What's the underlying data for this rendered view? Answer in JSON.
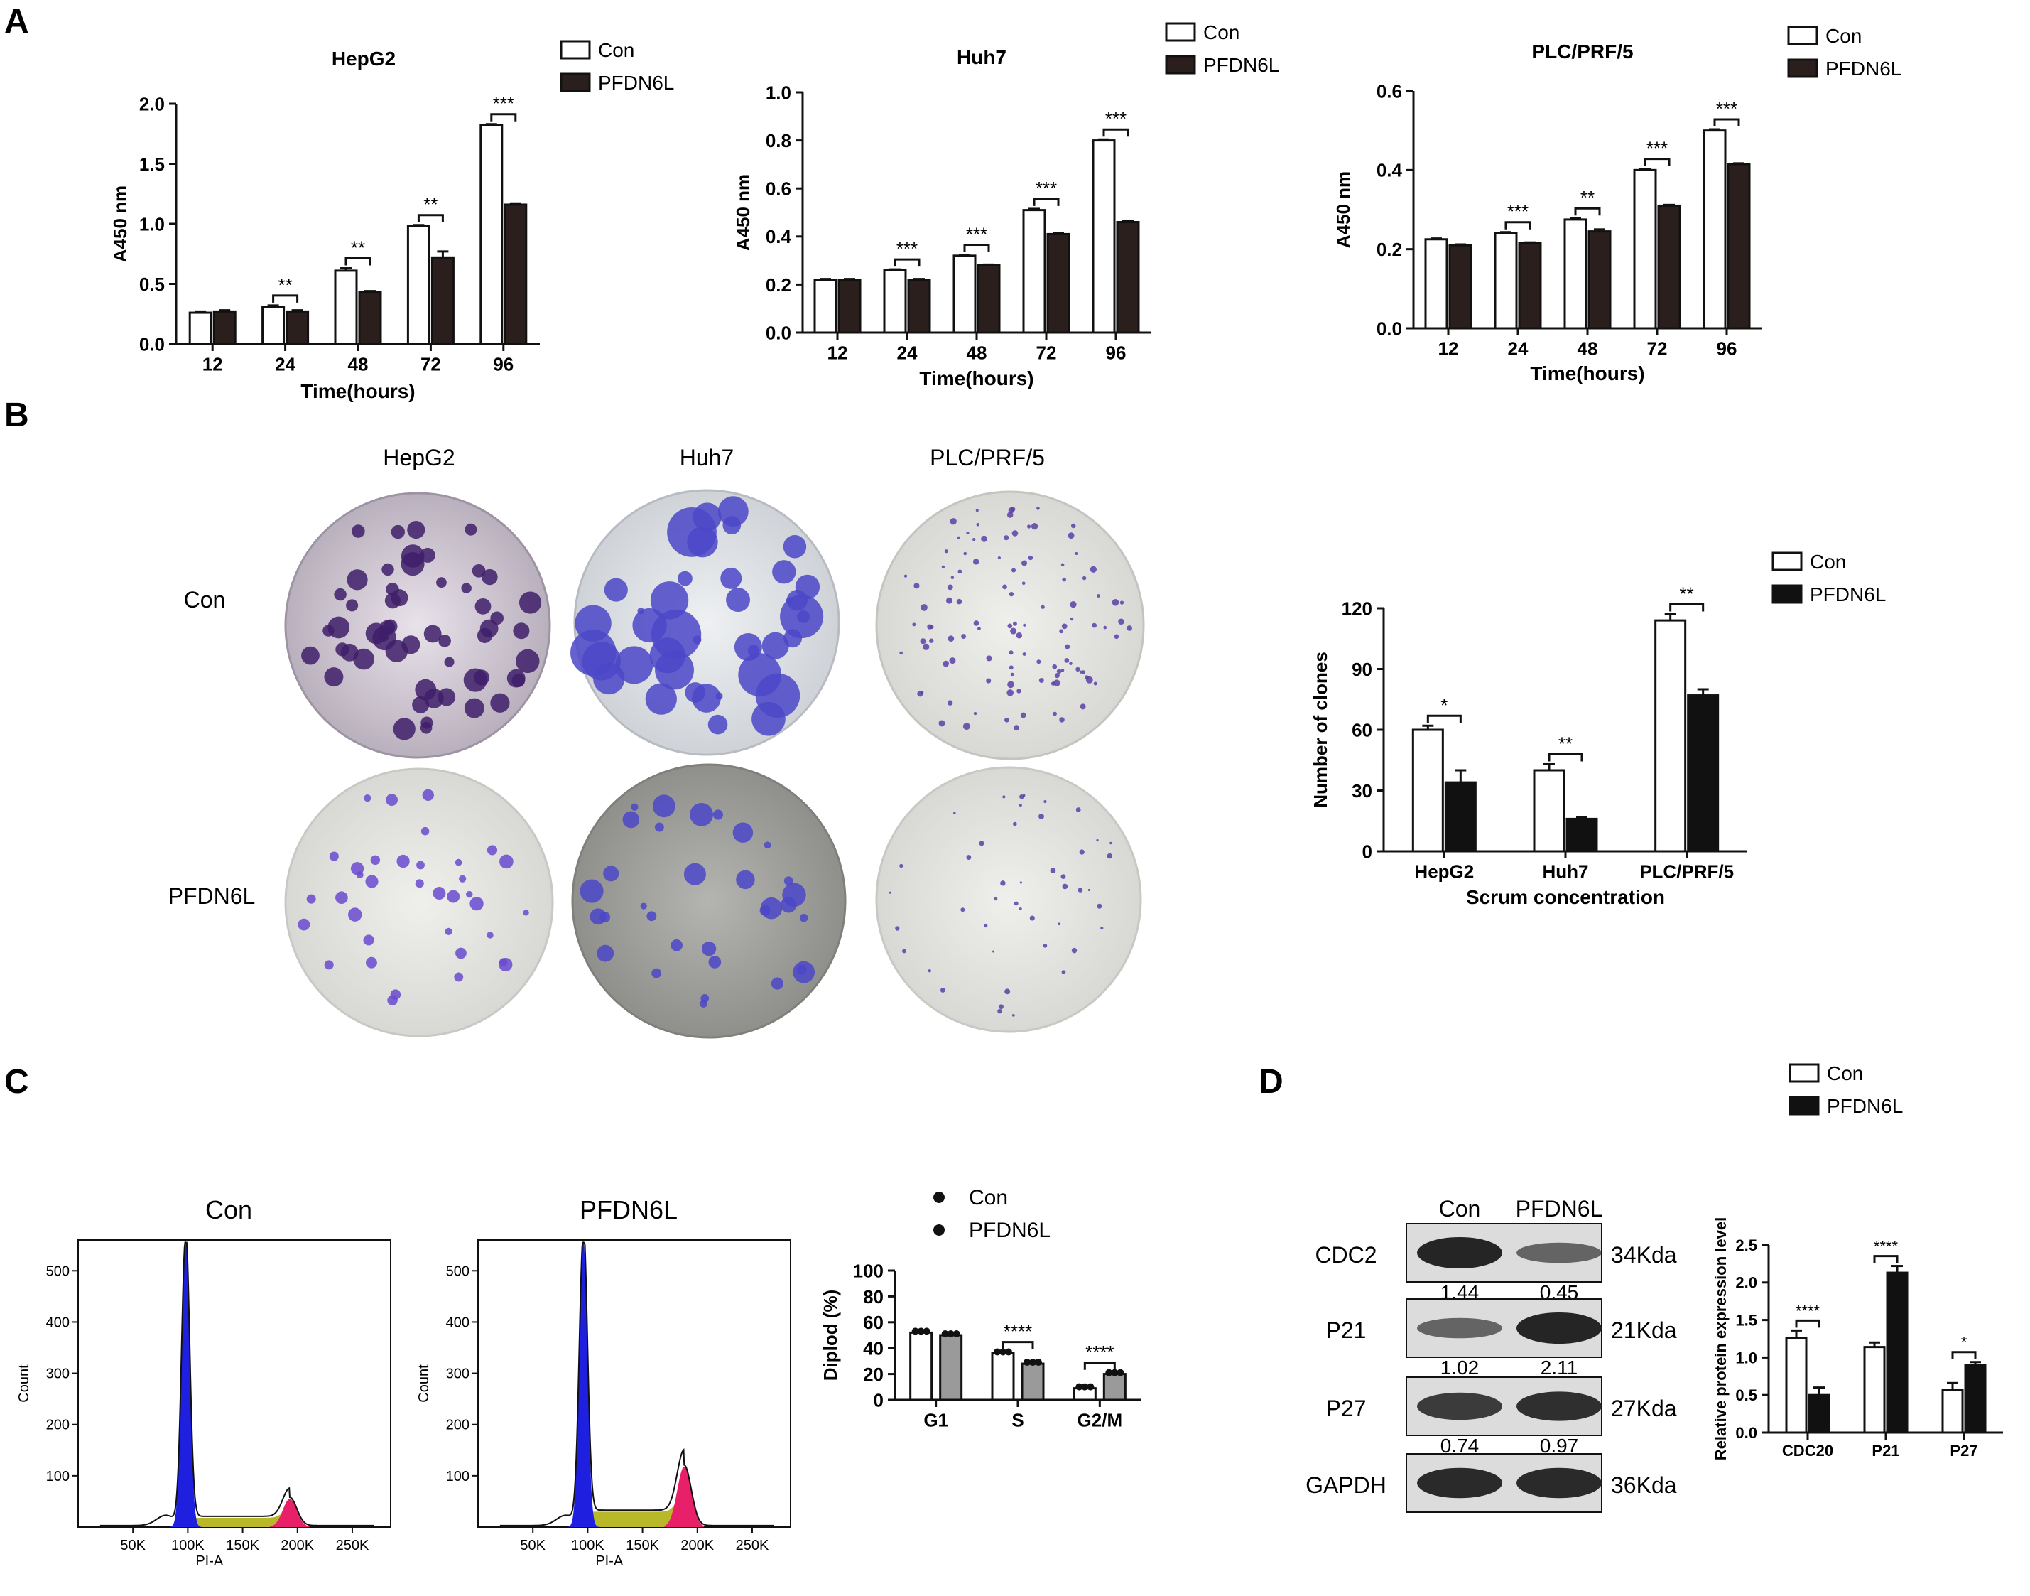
{
  "panels": {
    "A": "A",
    "B": "B",
    "C": "C",
    "D": "D"
  },
  "colors": {
    "con_fill": "#ffffff",
    "pfdn_dark": "#2a1f1d",
    "pfdn_black": "#111111",
    "pfdn_grey": "#9a9a9a",
    "g1_blue": "#1f1fe0",
    "s_olive": "#b8b828",
    "g2_pink": "#e8206a",
    "stain": "#5b3fa8"
  },
  "chart_data": [
    {
      "id": "A1",
      "type": "bar",
      "title": "HepG2",
      "categories": [
        "12",
        "24",
        "48",
        "72",
        "96"
      ],
      "series": [
        {
          "name": "Con",
          "values": [
            0.26,
            0.31,
            0.61,
            0.98,
            1.82
          ],
          "errors": [
            0.01,
            0.01,
            0.02,
            0.01,
            0.01
          ]
        },
        {
          "name": "PFDN6L",
          "values": [
            0.27,
            0.27,
            0.43,
            0.72,
            1.16
          ],
          "errors": [
            0.01,
            0.01,
            0.01,
            0.05,
            0.01
          ]
        }
      ],
      "significance": [
        "",
        "**",
        "**",
        "**",
        "***"
      ],
      "xlabel": "Time(hours)",
      "ylabel": "A450  nm",
      "ylim": [
        0,
        2.0
      ],
      "yticks": [
        "0.0",
        "0.5",
        "1.0",
        "1.5",
        "2.0"
      ],
      "ytick_values": [
        0,
        0.5,
        1.0,
        1.5,
        2.0
      ],
      "legend": [
        "Con",
        "PFDN6L"
      ]
    },
    {
      "id": "A2",
      "type": "bar",
      "title": "Huh7",
      "categories": [
        "12",
        "24",
        "48",
        "72",
        "96"
      ],
      "series": [
        {
          "name": "Con",
          "values": [
            0.22,
            0.26,
            0.32,
            0.51,
            0.8
          ],
          "errors": [
            0.003,
            0.003,
            0.004,
            0.005,
            0.004
          ]
        },
        {
          "name": "PFDN6L",
          "values": [
            0.22,
            0.22,
            0.28,
            0.41,
            0.46
          ],
          "errors": [
            0.003,
            0.003,
            0.003,
            0.004,
            0.003
          ]
        }
      ],
      "significance": [
        "",
        "***",
        "***",
        "***",
        "***"
      ],
      "xlabel": "Time(hours)",
      "ylabel": "A450  nm",
      "ylim": [
        0,
        1.0
      ],
      "yticks": [
        "0.0",
        "0.2",
        "0.4",
        "0.6",
        "0.8",
        "1.0"
      ],
      "ytick_values": [
        0,
        0.2,
        0.4,
        0.6,
        0.8,
        1.0
      ],
      "legend": [
        "Con",
        "PFDN6L"
      ]
    },
    {
      "id": "A3",
      "type": "bar",
      "title": "PLC/PRF/5",
      "categories": [
        "12",
        "24",
        "48",
        "72",
        "96"
      ],
      "series": [
        {
          "name": "Con",
          "values": [
            0.225,
            0.24,
            0.275,
            0.4,
            0.5
          ],
          "errors": [
            0.002,
            0.003,
            0.003,
            0.003,
            0.003
          ]
        },
        {
          "name": "PFDN6L",
          "values": [
            0.21,
            0.215,
            0.245,
            0.31,
            0.415
          ],
          "errors": [
            0.002,
            0.002,
            0.005,
            0.002,
            0.002
          ]
        }
      ],
      "significance": [
        "",
        "***",
        "**",
        "***",
        "***"
      ],
      "xlabel": "Time(hours)",
      "ylabel": "A450  nm",
      "ylim": [
        0,
        0.6
      ],
      "yticks": [
        "0.0",
        "0.2",
        "0.4",
        "0.6"
      ],
      "ytick_values": [
        0,
        0.2,
        0.4,
        0.6
      ],
      "legend": [
        "Con",
        "PFDN6L"
      ]
    },
    {
      "id": "B",
      "type": "bar",
      "title": "",
      "categories": [
        "HepG2",
        "Huh7",
        "PLC/PRF/5"
      ],
      "series": [
        {
          "name": "Con",
          "values": [
            60,
            40,
            114
          ],
          "errors": [
            2,
            3,
            3
          ]
        },
        {
          "name": "PFDN6L",
          "values": [
            34,
            16,
            77
          ],
          "errors": [
            6,
            1,
            3
          ]
        }
      ],
      "significance": [
        "*",
        "**",
        "**"
      ],
      "xlabel": "Scrum concentration",
      "ylabel": "Number of clones",
      "ylim": [
        0,
        120
      ],
      "yticks": [
        "0",
        "30",
        "60",
        "90",
        "120"
      ],
      "ytick_values": [
        0,
        30,
        60,
        90,
        120
      ],
      "legend": [
        "Con",
        "PFDN6L"
      ]
    },
    {
      "id": "C",
      "type": "bar",
      "title": "",
      "categories": [
        "G1",
        "S",
        "G2/M"
      ],
      "series": [
        {
          "name": "Con",
          "values": [
            52,
            36,
            9
          ],
          "errors": [
            1,
            1,
            1
          ]
        },
        {
          "name": "PFDN6L",
          "values": [
            50,
            28,
            20
          ],
          "errors": [
            1,
            1,
            1
          ]
        }
      ],
      "significance": [
        "",
        "****",
        "****"
      ],
      "xlabel": "",
      "ylabel": "Diplod (%)",
      "ylim": [
        0,
        100
      ],
      "yticks": [
        "0",
        "20",
        "40",
        "60",
        "80",
        "100"
      ],
      "ytick_values": [
        0,
        20,
        40,
        60,
        80,
        100
      ],
      "legend": [
        "Con",
        "PFDN6L"
      ]
    },
    {
      "id": "D",
      "type": "bar",
      "title": "",
      "categories": [
        "CDC20",
        "P21",
        "P27"
      ],
      "series": [
        {
          "name": "Con",
          "values": [
            1.26,
            1.14,
            0.57
          ],
          "errors": [
            0.1,
            0.06,
            0.09
          ]
        },
        {
          "name": "PFDN6L",
          "values": [
            0.5,
            2.13,
            0.9
          ],
          "errors": [
            0.1,
            0.09,
            0.04
          ]
        }
      ],
      "significance": [
        "****",
        "****",
        "*"
      ],
      "xlabel": "",
      "ylabel": "Relative protein expression level",
      "ylim": [
        0,
        2.5
      ],
      "yticks": [
        "0.0",
        "0.5",
        "1.0",
        "1.5",
        "2.0",
        "2.5"
      ],
      "ytick_values": [
        0,
        0.5,
        1.0,
        1.5,
        2.0,
        2.5
      ],
      "legend": [
        "Con",
        "PFDN6L"
      ]
    }
  ],
  "colony": {
    "cols": [
      "HepG2",
      "Huh7",
      "PLC/PRF/5"
    ],
    "rows": [
      "Con",
      "PFDN6L"
    ]
  },
  "flow": {
    "titles": [
      "Con",
      "PFDN6L"
    ],
    "xlabel": "PI-A",
    "ylabel": "Count",
    "xticks": [
      "50K",
      "100K",
      "150K",
      "200K",
      "250K"
    ],
    "yticks": [
      "100",
      "200",
      "300",
      "400",
      "500"
    ]
  },
  "western": {
    "col_labels": [
      "Con",
      "PFDN6L"
    ],
    "bands": [
      {
        "name": "CDC2",
        "kda": "34Kda",
        "values": [
          "1.44",
          "0.45"
        ]
      },
      {
        "name": "P21",
        "kda": "21Kda",
        "values": [
          "1.02",
          "2.11"
        ]
      },
      {
        "name": "P27",
        "kda": "27Kda",
        "values": [
          "0.74",
          "0.97"
        ]
      },
      {
        "name": "GAPDH",
        "kda": "36Kda",
        "values": []
      }
    ]
  }
}
